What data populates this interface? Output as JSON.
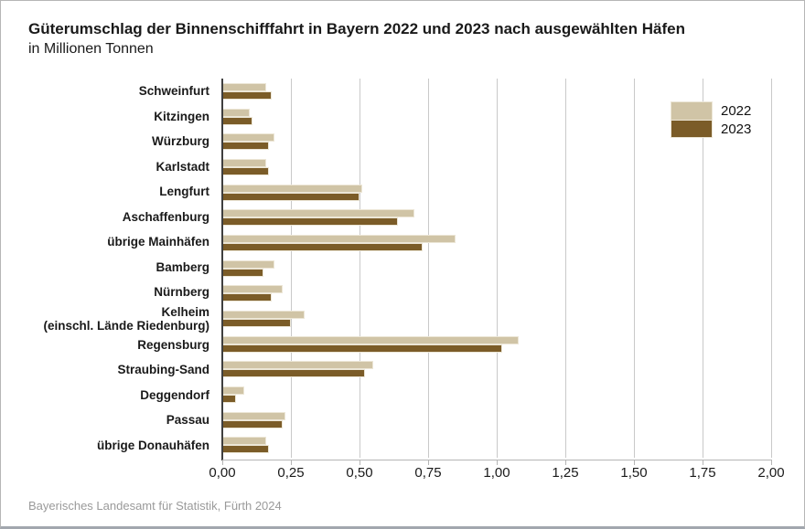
{
  "header": {
    "title": "Güterumschlag der Binnenschifffahrt in Bayern 2022 und 2023 nach ausgewählten Häfen",
    "subtitle": "in Millionen Tonnen"
  },
  "footer": {
    "source": "Bayerisches Landesamt für Statistik, Fürth 2024"
  },
  "colors": {
    "series_2022": "#d0c4a6",
    "series_2023": "#7b5c28",
    "bar_border": "#ece6d6",
    "gridline": "#c9c9c9",
    "axis": "#3f3f3f"
  },
  "chart_data": {
    "type": "bar",
    "orientation": "horizontal",
    "title": "Güterumschlag der Binnenschifffahrt in Bayern 2022 und 2023 nach ausgewählten Häfen",
    "subtitle": "in Millionen Tonnen",
    "xlabel": "",
    "ylabel": "",
    "xlim": [
      0,
      2.0
    ],
    "grid": true,
    "legend_position": "top-right",
    "tick_labels": [
      "0,00",
      "0,25",
      "0,50",
      "0,75",
      "1,00",
      "1,25",
      "1,50",
      "1,75",
      "2,00"
    ],
    "categories": [
      "Schweinfurt",
      "Kitzingen",
      "Würzburg",
      "Karlstadt",
      "Lengfurt",
      "Aschaffenburg",
      "übrige Mainhäfen",
      "Bamberg",
      "Nürnberg",
      "Kelheim\n(einschl. Lände Riedenburg)",
      "Regensburg",
      "Straubing-Sand",
      "Deggendorf",
      "Passau",
      "übrige Donauhäfen"
    ],
    "series": [
      {
        "name": "2022",
        "values": [
          0.16,
          0.1,
          0.19,
          0.16,
          0.51,
          0.7,
          0.85,
          0.19,
          0.22,
          0.3,
          1.08,
          0.55,
          0.08,
          0.23,
          0.16
        ]
      },
      {
        "name": "2023",
        "values": [
          0.18,
          0.11,
          0.17,
          0.17,
          0.5,
          0.64,
          0.73,
          0.15,
          0.18,
          0.25,
          1.02,
          0.52,
          0.05,
          0.22,
          0.17
        ]
      }
    ]
  }
}
